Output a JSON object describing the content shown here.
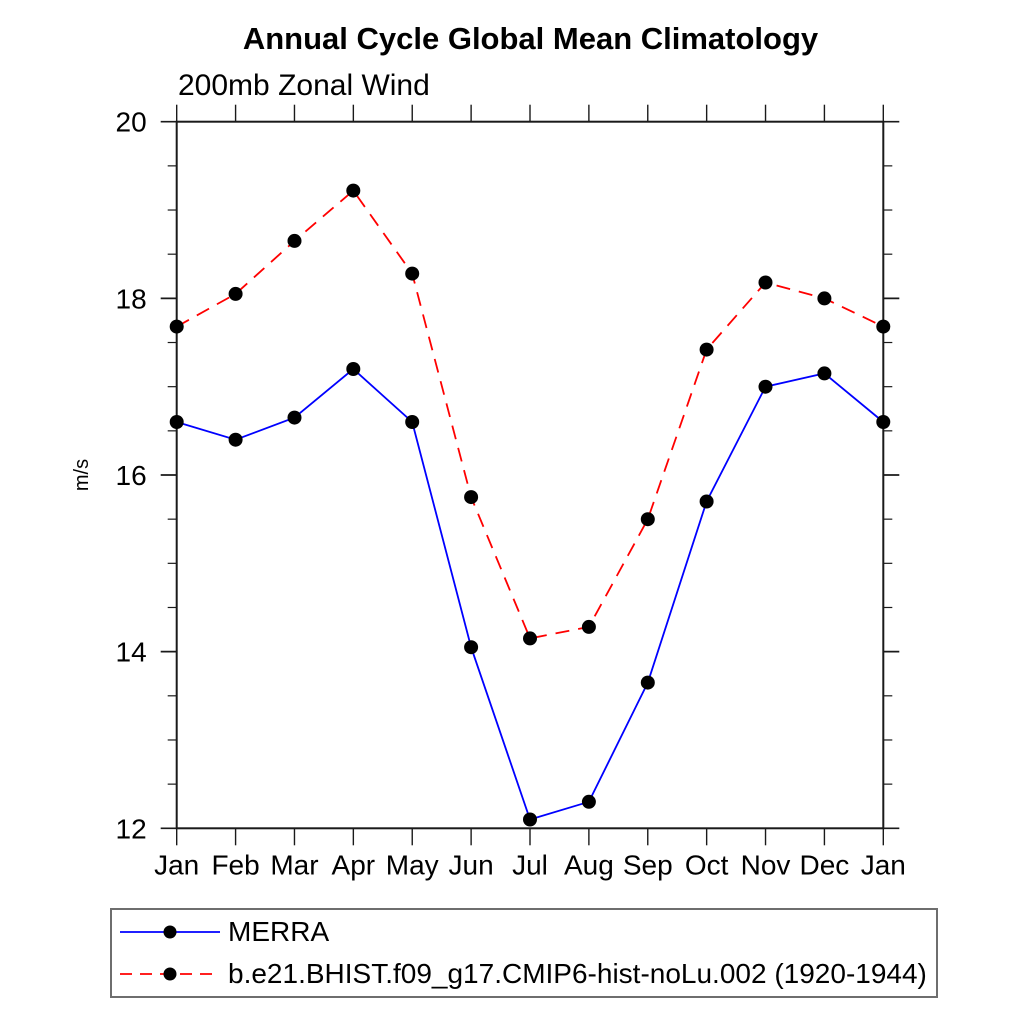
{
  "chart_data": {
    "type": "line",
    "title": "Annual Cycle Global Mean Climatology",
    "subtitle": "200mb Zonal Wind",
    "ylabel": "m/s",
    "xlabel": "",
    "categories": [
      "Jan",
      "Feb",
      "Mar",
      "Apr",
      "May",
      "Jun",
      "Jul",
      "Aug",
      "Sep",
      "Oct",
      "Nov",
      "Dec",
      "Jan"
    ],
    "ylim": [
      12,
      20
    ],
    "yticks": [
      12,
      14,
      16,
      18,
      20
    ],
    "minor_tick_step": 0.5,
    "grid": false,
    "legend_position": "bottom",
    "axis_color": "#1a1a1a",
    "marker_color": "#000000",
    "series": [
      {
        "name": "MERRA",
        "color": "#0000ff",
        "style": "solid",
        "marker": "circle",
        "values": [
          16.6,
          16.4,
          16.65,
          17.2,
          16.6,
          14.05,
          12.1,
          12.3,
          13.65,
          15.7,
          17.0,
          17.15,
          16.6
        ]
      },
      {
        "name": "b.e21.BHIST.f09_g17.CMIP6-hist-noLu.002 (1920-1944)",
        "color": "#ff0000",
        "style": "dashed",
        "marker": "circle",
        "values": [
          17.68,
          18.05,
          18.65,
          19.22,
          18.28,
          15.75,
          14.15,
          14.28,
          15.5,
          17.42,
          18.18,
          18.0,
          17.68
        ]
      }
    ]
  }
}
